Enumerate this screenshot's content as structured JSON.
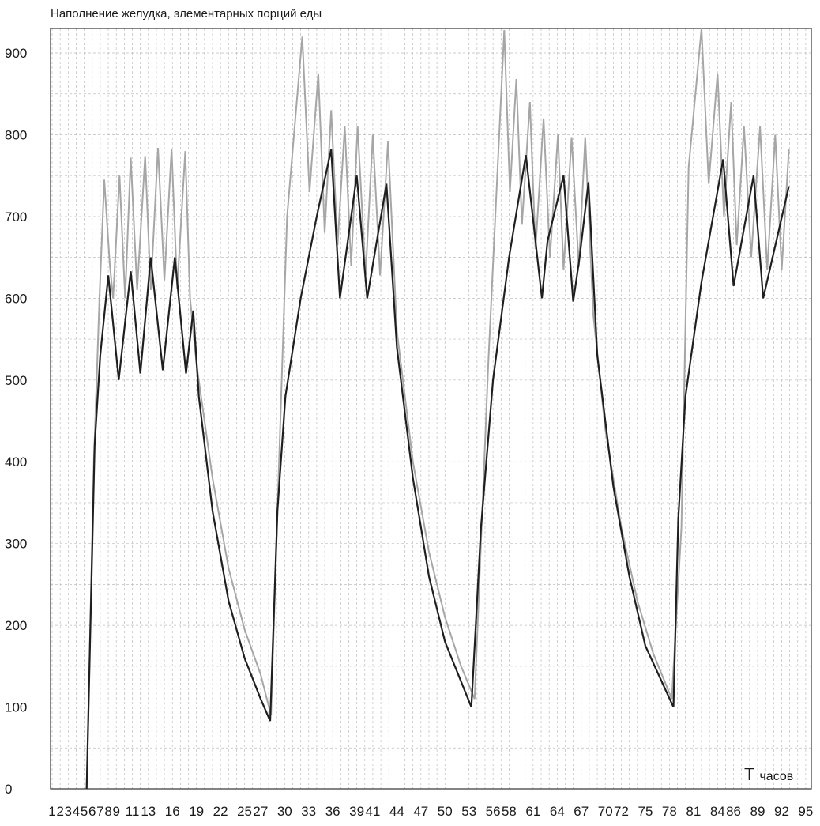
{
  "chart_data": {
    "type": "line",
    "title": "Наполнение желудка, элементарных порций еды",
    "xlabel": {
      "symbol": "T",
      "unit": "часов"
    },
    "ylabel": "",
    "ylim": [
      0,
      930
    ],
    "y_ticks": [
      0,
      100,
      200,
      300,
      400,
      500,
      600,
      700,
      800,
      900
    ],
    "x_range": [
      0.8,
      95.7
    ],
    "grid": true,
    "legend": "none",
    "x_tick_labels": [
      1,
      2,
      3,
      4,
      5,
      6,
      7,
      8,
      9,
      11,
      13,
      16,
      19,
      22,
      25,
      27,
      30,
      33,
      36,
      39,
      41,
      44,
      47,
      50,
      53,
      56,
      58,
      61,
      64,
      67,
      70,
      72,
      75,
      78,
      81,
      84,
      86,
      89,
      92,
      95
    ],
    "series": [
      {
        "color": "#a6a6a6",
        "points": [
          [
            5.3,
            0
          ],
          [
            6.2,
            400
          ],
          [
            6.9,
            600
          ],
          [
            7.5,
            745
          ],
          [
            8.2,
            640
          ],
          [
            8.6,
            600
          ],
          [
            9.4,
            750
          ],
          [
            10.1,
            600
          ],
          [
            10.8,
            772
          ],
          [
            11.6,
            610
          ],
          [
            12.6,
            774
          ],
          [
            13.3,
            610
          ],
          [
            14.2,
            784
          ],
          [
            15.0,
            622
          ],
          [
            15.9,
            783
          ],
          [
            16.6,
            612
          ],
          [
            17.6,
            780
          ],
          [
            18.2,
            600
          ],
          [
            19,
            520
          ],
          [
            21,
            380
          ],
          [
            23,
            270
          ],
          [
            25,
            195
          ],
          [
            27,
            140
          ],
          [
            28.3,
            90
          ],
          [
            29.1,
            340
          ],
          [
            30.3,
            700
          ],
          [
            32.2,
            920
          ],
          [
            33.1,
            730
          ],
          [
            34.2,
            875
          ],
          [
            35.0,
            680
          ],
          [
            35.8,
            830
          ],
          [
            36.6,
            665
          ],
          [
            37.5,
            810
          ],
          [
            38.3,
            640
          ],
          [
            39.1,
            810
          ],
          [
            40.1,
            628
          ],
          [
            41.0,
            800
          ],
          [
            41.9,
            628
          ],
          [
            42.9,
            792
          ],
          [
            44,
            560
          ],
          [
            46,
            400
          ],
          [
            48,
            290
          ],
          [
            50,
            210
          ],
          [
            52,
            150
          ],
          [
            53.7,
            110
          ],
          [
            55.4,
            520
          ],
          [
            57.4,
            928
          ],
          [
            58.1,
            730
          ],
          [
            58.9,
            868
          ],
          [
            59.6,
            690
          ],
          [
            60.6,
            840
          ],
          [
            61.3,
            660
          ],
          [
            62.3,
            820
          ],
          [
            63.1,
            650
          ],
          [
            64.1,
            800
          ],
          [
            64.8,
            635
          ],
          [
            65.8,
            797
          ],
          [
            66.7,
            638
          ],
          [
            67.5,
            797
          ],
          [
            68.5,
            580
          ],
          [
            70,
            440
          ],
          [
            72,
            320
          ],
          [
            74,
            230
          ],
          [
            76,
            165
          ],
          [
            78.3,
            110
          ],
          [
            79.5,
            320
          ],
          [
            80.4,
            760
          ],
          [
            82.0,
            930
          ],
          [
            82.9,
            740
          ],
          [
            84.0,
            875
          ],
          [
            84.8,
            700
          ],
          [
            85.7,
            840
          ],
          [
            86.4,
            665
          ],
          [
            87.3,
            810
          ],
          [
            88.2,
            650
          ],
          [
            89.3,
            810
          ],
          [
            90.2,
            635
          ],
          [
            91.2,
            800
          ],
          [
            92.0,
            635
          ],
          [
            92.9,
            782
          ]
        ]
      },
      {
        "color": "#1f1f1f",
        "points": [
          [
            5.3,
            0
          ],
          [
            6.3,
            420
          ],
          [
            7.0,
            530
          ],
          [
            8.0,
            628
          ],
          [
            9.3,
            500
          ],
          [
            10.8,
            633
          ],
          [
            12.0,
            508
          ],
          [
            13.3,
            650
          ],
          [
            14.8,
            512
          ],
          [
            16.3,
            650
          ],
          [
            17.7,
            508
          ],
          [
            18.6,
            585
          ],
          [
            19.3,
            480
          ],
          [
            21,
            340
          ],
          [
            23,
            230
          ],
          [
            25,
            160
          ],
          [
            27,
            110
          ],
          [
            28.2,
            83
          ],
          [
            29.1,
            340
          ],
          [
            30.1,
            480
          ],
          [
            32,
            600
          ],
          [
            34,
            700
          ],
          [
            35.8,
            782
          ],
          [
            36.9,
            600
          ],
          [
            39.0,
            750
          ],
          [
            40.3,
            600
          ],
          [
            42.7,
            740
          ],
          [
            44,
            540
          ],
          [
            46,
            380
          ],
          [
            48,
            260
          ],
          [
            50,
            180
          ],
          [
            53.3,
            100
          ],
          [
            54.5,
            320
          ],
          [
            56,
            500
          ],
          [
            58,
            650
          ],
          [
            60.1,
            775
          ],
          [
            62.1,
            600
          ],
          [
            62.8,
            670
          ],
          [
            64.8,
            750
          ],
          [
            66.0,
            596
          ],
          [
            66.8,
            650
          ],
          [
            67.9,
            742
          ],
          [
            69,
            530
          ],
          [
            71,
            370
          ],
          [
            73,
            260
          ],
          [
            75,
            175
          ],
          [
            78.5,
            100
          ],
          [
            79.1,
            330
          ],
          [
            80,
            480
          ],
          [
            82,
            620
          ],
          [
            84.7,
            770
          ],
          [
            86,
            615
          ],
          [
            88.5,
            750
          ],
          [
            89.7,
            600
          ],
          [
            92.9,
            737
          ]
        ]
      }
    ]
  }
}
